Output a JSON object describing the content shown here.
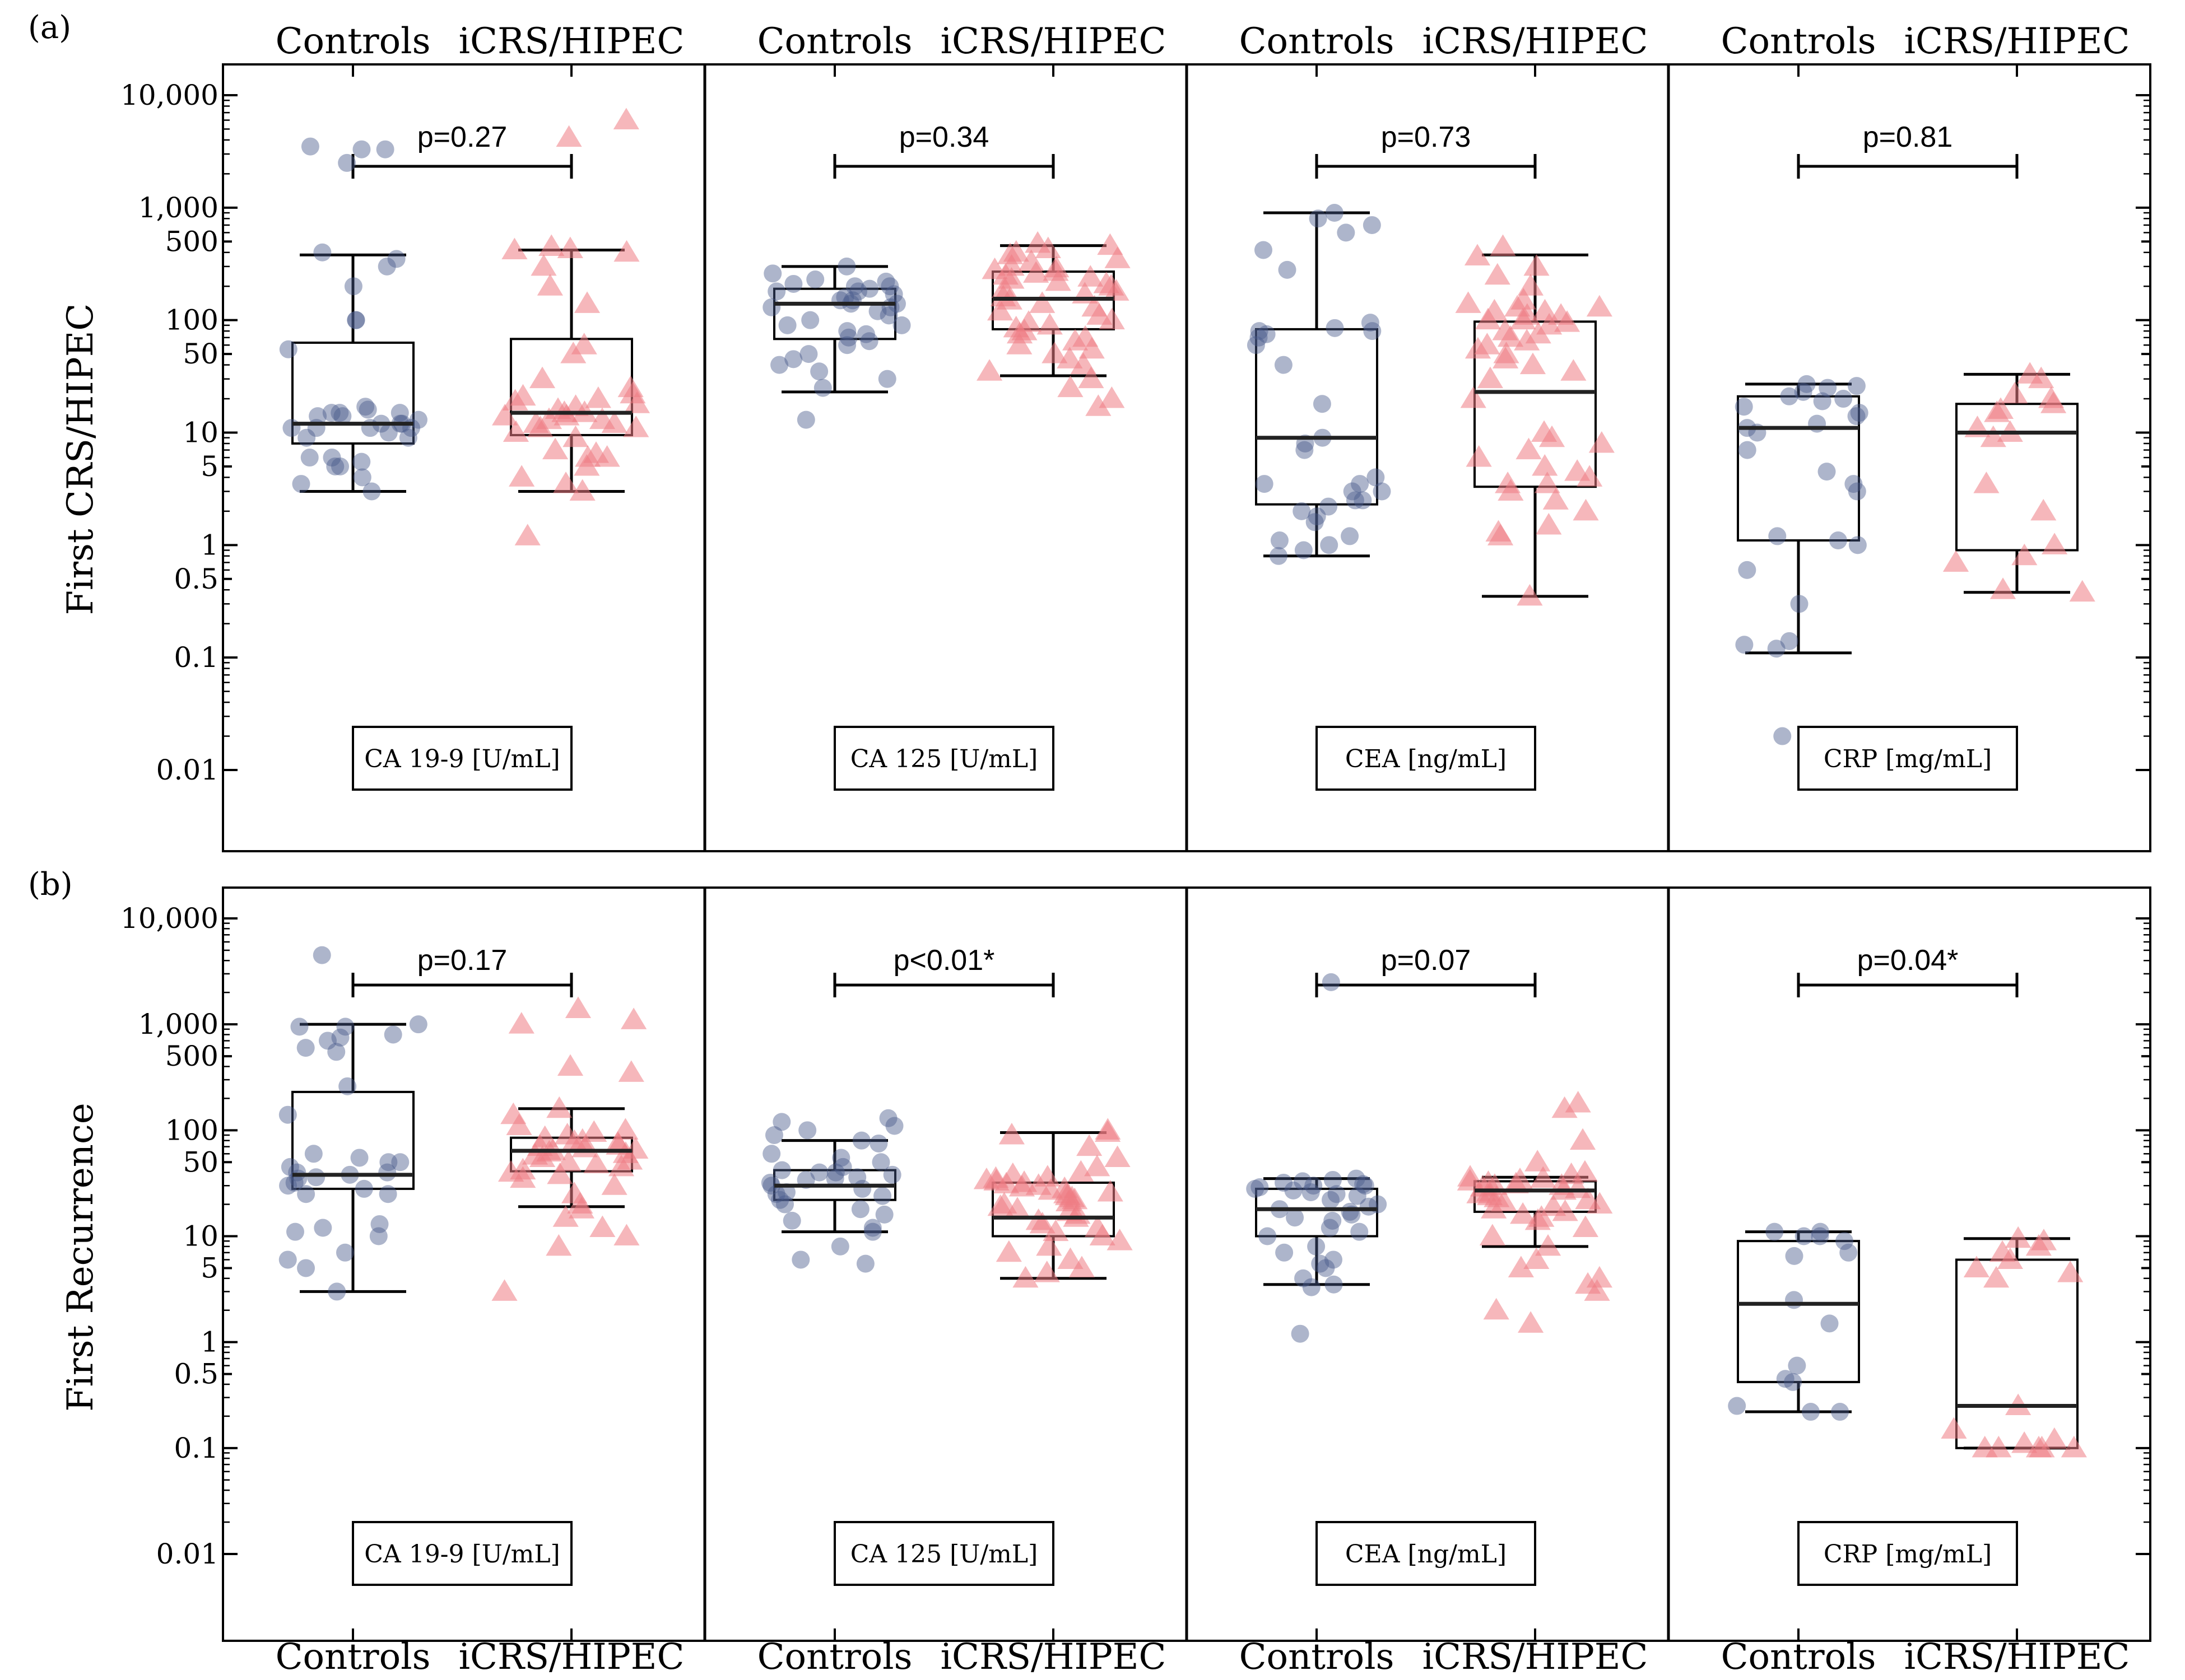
{
  "figure": {
    "panel_labels": [
      "(a)",
      "(b)"
    ],
    "category_labels": [
      "Controls",
      "iCRS/HIPEC"
    ],
    "colors": {
      "controls": "#4a5a8c",
      "icrs": "#ef7b84",
      "box": "#000000",
      "background": "#ffffff"
    }
  },
  "chart_data": [
    {
      "type": "box",
      "panel": "(a)",
      "ylabel": "First CRS/HIPEC",
      "y_scale": "log",
      "ylim": [
        0.002,
        20000
      ],
      "y_ticks": [
        {
          "value": 10000,
          "label": "10,000"
        },
        {
          "value": 1000,
          "label": "1,000"
        },
        {
          "value": 500,
          "label": "500"
        },
        {
          "value": 100,
          "label": "100"
        },
        {
          "value": 50,
          "label": "50"
        },
        {
          "value": 10,
          "label": "10"
        },
        {
          "value": 5,
          "label": "5"
        },
        {
          "value": 1,
          "label": "1"
        },
        {
          "value": 0.5,
          "label": "0.5"
        },
        {
          "value": 0.1,
          "label": "0.1"
        },
        {
          "value": 0.01,
          "label": "0.01"
        }
      ],
      "markers": [
        "Controls",
        "iCRS/HIPEC"
      ],
      "subpanels": [
        {
          "label": "CA 19-9 [U/mL]",
          "p_value": "p=0.27",
          "groups": [
            {
              "name": "Controls",
              "whisker_low": 3,
              "q1": 8,
              "median": 12,
              "q3": 63,
              "whisker_high": 380,
              "points": [
                3500,
                3300,
                3300,
                2500,
                400,
                350,
                300,
                200,
                100,
                100,
                55,
                17,
                16,
                15,
                15,
                15,
                14,
                14,
                13,
                12,
                12,
                12,
                11,
                11,
                11,
                11,
                10,
                9,
                9,
                6,
                6,
                5.5,
                5,
                5,
                4,
                3.5,
                3
              ]
            },
            {
              "name": "iCRS/HIPEC",
              "whisker_low": 3,
              "q1": 9.5,
              "median": 15,
              "q3": 68,
              "whisker_high": 420,
              "points": [
                6000,
                4200,
                450,
                430,
                420,
                400,
                300,
                200,
                140,
                60,
                50,
                30,
                25,
                22,
                21,
                20,
                19,
                18,
                17,
                16,
                15,
                15,
                14,
                14,
                13,
                13,
                12,
                12,
                11,
                11,
                10,
                9,
                7,
                6.5,
                6,
                6,
                5,
                4,
                3.5,
                3,
                1.2
              ]
            }
          ]
        },
        {
          "label": "CA 125 [U/mL]",
          "p_value": "p=0.34",
          "groups": [
            {
              "name": "Controls",
              "whisker_low": 23,
              "q1": 68,
              "median": 140,
              "q3": 190,
              "whisker_high": 300,
              "points": [
                300,
                260,
                230,
                220,
                210,
                200,
                200,
                190,
                180,
                180,
                170,
                160,
                150,
                150,
                140,
                140,
                130,
                130,
                120,
                110,
                100,
                90,
                90,
                80,
                75,
                70,
                65,
                60,
                50,
                45,
                40,
                35,
                30,
                25,
                13
              ]
            },
            {
              "name": "iCRS/HIPEC",
              "whisker_low": 32,
              "q1": 83,
              "median": 155,
              "q3": 270,
              "whisker_high": 460,
              "points": [
                480,
                460,
                430,
                400,
                380,
                350,
                330,
                300,
                290,
                280,
                270,
                260,
                250,
                240,
                230,
                220,
                210,
                200,
                190,
                180,
                170,
                160,
                150,
                140,
                130,
                120,
                110,
                100,
                95,
                90,
                85,
                80,
                75,
                70,
                65,
                60,
                55,
                50,
                45,
                40,
                35,
                30,
                25,
                20,
                17
              ]
            }
          ]
        },
        {
          "label": "CEA [ng/mL]",
          "p_value": "p=0.73",
          "groups": [
            {
              "name": "Controls",
              "whisker_low": 0.8,
              "q1": 2.3,
              "median": 9,
              "q3": 83,
              "whisker_high": 900,
              "points": [
                900,
                800,
                700,
                600,
                420,
                280,
                95,
                85,
                80,
                80,
                75,
                70,
                60,
                40,
                18,
                9,
                8,
                7,
                4,
                3.5,
                3.5,
                3,
                3,
                2.5,
                2.5,
                2.2,
                2,
                1.8,
                1.6,
                1.2,
                1.1,
                1,
                0.9,
                0.8
              ]
            },
            {
              "name": "iCRS/HIPEC",
              "whisker_low": 0.35,
              "q1": 3.3,
              "median": 23,
              "q3": 97,
              "whisker_high": 380,
              "points": [
                450,
                370,
                300,
                250,
                200,
                150,
                140,
                130,
                130,
                120,
                120,
                110,
                110,
                100,
                100,
                95,
                90,
                80,
                75,
                70,
                65,
                60,
                55,
                50,
                45,
                40,
                35,
                30,
                20,
                10,
                9,
                8,
                7,
                6,
                5,
                4.5,
                4,
                3.5,
                3.5,
                3,
                2.5,
                2,
                1.5,
                1.3,
                1.2,
                0.35
              ]
            }
          ]
        },
        {
          "label": "CRP [mg/mL]",
          "p_value": "p=0.81",
          "groups": [
            {
              "name": "Controls",
              "whisker_low": 0.11,
              "q1": 1.1,
              "median": 11,
              "q3": 21,
              "whisker_high": 27,
              "points": [
                27,
                26,
                25,
                23,
                21,
                20,
                19,
                17,
                15,
                14,
                12,
                11,
                10,
                7,
                4.5,
                3.5,
                3,
                1.2,
                1.1,
                1,
                0.6,
                0.3,
                0.14,
                0.13,
                0.12,
                0.02
              ]
            },
            {
              "name": "iCRS/HIPEC",
              "whisker_low": 0.38,
              "q1": 0.9,
              "median": 10,
              "q3": 18,
              "whisker_high": 33,
              "points": [
                33,
                30,
                22,
                20,
                18,
                16,
                15,
                11,
                10,
                9,
                3.5,
                2,
                1,
                0.8,
                0.7,
                0.4,
                0.38
              ]
            }
          ]
        }
      ]
    },
    {
      "type": "box",
      "panel": "(b)",
      "ylabel": "First Recurrence",
      "y_scale": "log",
      "ylim": [
        0.002,
        20000
      ],
      "y_ticks": [
        {
          "value": 10000,
          "label": "10,000"
        },
        {
          "value": 1000,
          "label": "1,000"
        },
        {
          "value": 500,
          "label": "500"
        },
        {
          "value": 100,
          "label": "100"
        },
        {
          "value": 50,
          "label": "50"
        },
        {
          "value": 10,
          "label": "10"
        },
        {
          "value": 5,
          "label": "5"
        },
        {
          "value": 1,
          "label": "1"
        },
        {
          "value": 0.5,
          "label": "0.5"
        },
        {
          "value": 0.1,
          "label": "0.1"
        },
        {
          "value": 0.01,
          "label": "0.01"
        }
      ],
      "markers": [
        "Controls",
        "iCRS/HIPEC"
      ],
      "subpanels": [
        {
          "label": "CA 19-9 [U/mL]",
          "p_value": "p=0.17",
          "groups": [
            {
              "name": "Controls",
              "whisker_low": 3,
              "q1": 28,
              "median": 38,
              "q3": 230,
              "whisker_high": 1000,
              "points": [
                4500,
                1000,
                950,
                950,
                800,
                750,
                700,
                600,
                550,
                260,
                140,
                60,
                55,
                50,
                50,
                45,
                40,
                40,
                38,
                36,
                35,
                32,
                30,
                28,
                25,
                25,
                13,
                12,
                11,
                10,
                7,
                6,
                5,
                3
              ]
            },
            {
              "name": "iCRS/HIPEC",
              "whisker_low": 19,
              "q1": 41,
              "median": 64,
              "q3": 85,
              "whisker_high": 160,
              "points": [
                1400,
                1100,
                1000,
                400,
                350,
                160,
                140,
                110,
                100,
                95,
                90,
                85,
                80,
                78,
                75,
                72,
                70,
                68,
                66,
                64,
                62,
                60,
                58,
                55,
                52,
                50,
                48,
                45,
                42,
                40,
                38,
                35,
                30,
                25,
                20,
                18,
                15,
                12,
                10,
                8,
                3
              ]
            }
          ]
        },
        {
          "label": "CA 125 [U/mL]",
          "p_value": "p<0.01*",
          "groups": [
            {
              "name": "Controls",
              "whisker_low": 11,
              "q1": 22,
              "median": 30,
              "q3": 42,
              "whisker_high": 80,
              "points": [
                130,
                120,
                110,
                100,
                90,
                80,
                75,
                60,
                55,
                50,
                45,
                42,
                40,
                40,
                38,
                36,
                35,
                34,
                32,
                30,
                28,
                26,
                25,
                24,
                22,
                20,
                18,
                16,
                14,
                12,
                11,
                8,
                6,
                5.5
              ]
            },
            {
              "name": "iCRS/HIPEC",
              "whisker_low": 4,
              "q1": 10,
              "median": 15,
              "q3": 32,
              "whisker_high": 95,
              "points": [
                100,
                95,
                90,
                70,
                55,
                45,
                40,
                38,
                36,
                35,
                34,
                33,
                32,
                31,
                30,
                29,
                28,
                27,
                26,
                25,
                24,
                23,
                22,
                21,
                20,
                19,
                18,
                17,
                16,
                15,
                14,
                13,
                12,
                11,
                10,
                9,
                8,
                7,
                6,
                5,
                4.5,
                4
              ]
            }
          ]
        },
        {
          "label": "CEA [ng/mL]",
          "p_value": "p=0.07",
          "groups": [
            {
              "name": "Controls",
              "whisker_low": 3.5,
              "q1": 10,
              "median": 18,
              "q3": 28,
              "whisker_high": 35,
              "points": [
                2500,
                35,
                34,
                33,
                32,
                31,
                30,
                30,
                29,
                28,
                27,
                26,
                25,
                24,
                22,
                20,
                19,
                18,
                17,
                16,
                15,
                14,
                12,
                11,
                10,
                8,
                7,
                6,
                5.5,
                5,
                4,
                3.5,
                3.3,
                1.2
              ]
            },
            {
              "name": "iCRS/HIPEC",
              "whisker_low": 8,
              "q1": 17,
              "median": 27,
              "q3": 33,
              "whisker_high": 36,
              "points": [
                180,
                160,
                80,
                50,
                40,
                38,
                36,
                35,
                34,
                33,
                32,
                31,
                30,
                30,
                29,
                28,
                27,
                26,
                25,
                24,
                23,
                22,
                21,
                20,
                19,
                18,
                17,
                16,
                15,
                14,
                12,
                10,
                8,
                6,
                5,
                4,
                3.5,
                3,
                2,
                1.5
              ]
            }
          ]
        },
        {
          "label": "CRP [mg/mL]",
          "p_value": "p=0.04*",
          "groups": [
            {
              "name": "Controls",
              "whisker_low": 0.22,
              "q1": 0.42,
              "median": 2.3,
              "q3": 9,
              "whisker_high": 11,
              "points": [
                11,
                11,
                10,
                10,
                9,
                7,
                6.5,
                2.5,
                1.5,
                0.6,
                0.45,
                0.42,
                0.25,
                0.22,
                0.22
              ]
            },
            {
              "name": "iCRS/HIPEC",
              "whisker_low": 0.1,
              "q1": 0.1,
              "median": 0.25,
              "q3": 6,
              "whisker_high": 9.5,
              "points": [
                9.5,
                9,
                8,
                7,
                6,
                5,
                4.5,
                4,
                0.25,
                0.15,
                0.12,
                0.11,
                0.1,
                0.1,
                0.1,
                0.1,
                0.1
              ]
            }
          ]
        }
      ]
    }
  ]
}
